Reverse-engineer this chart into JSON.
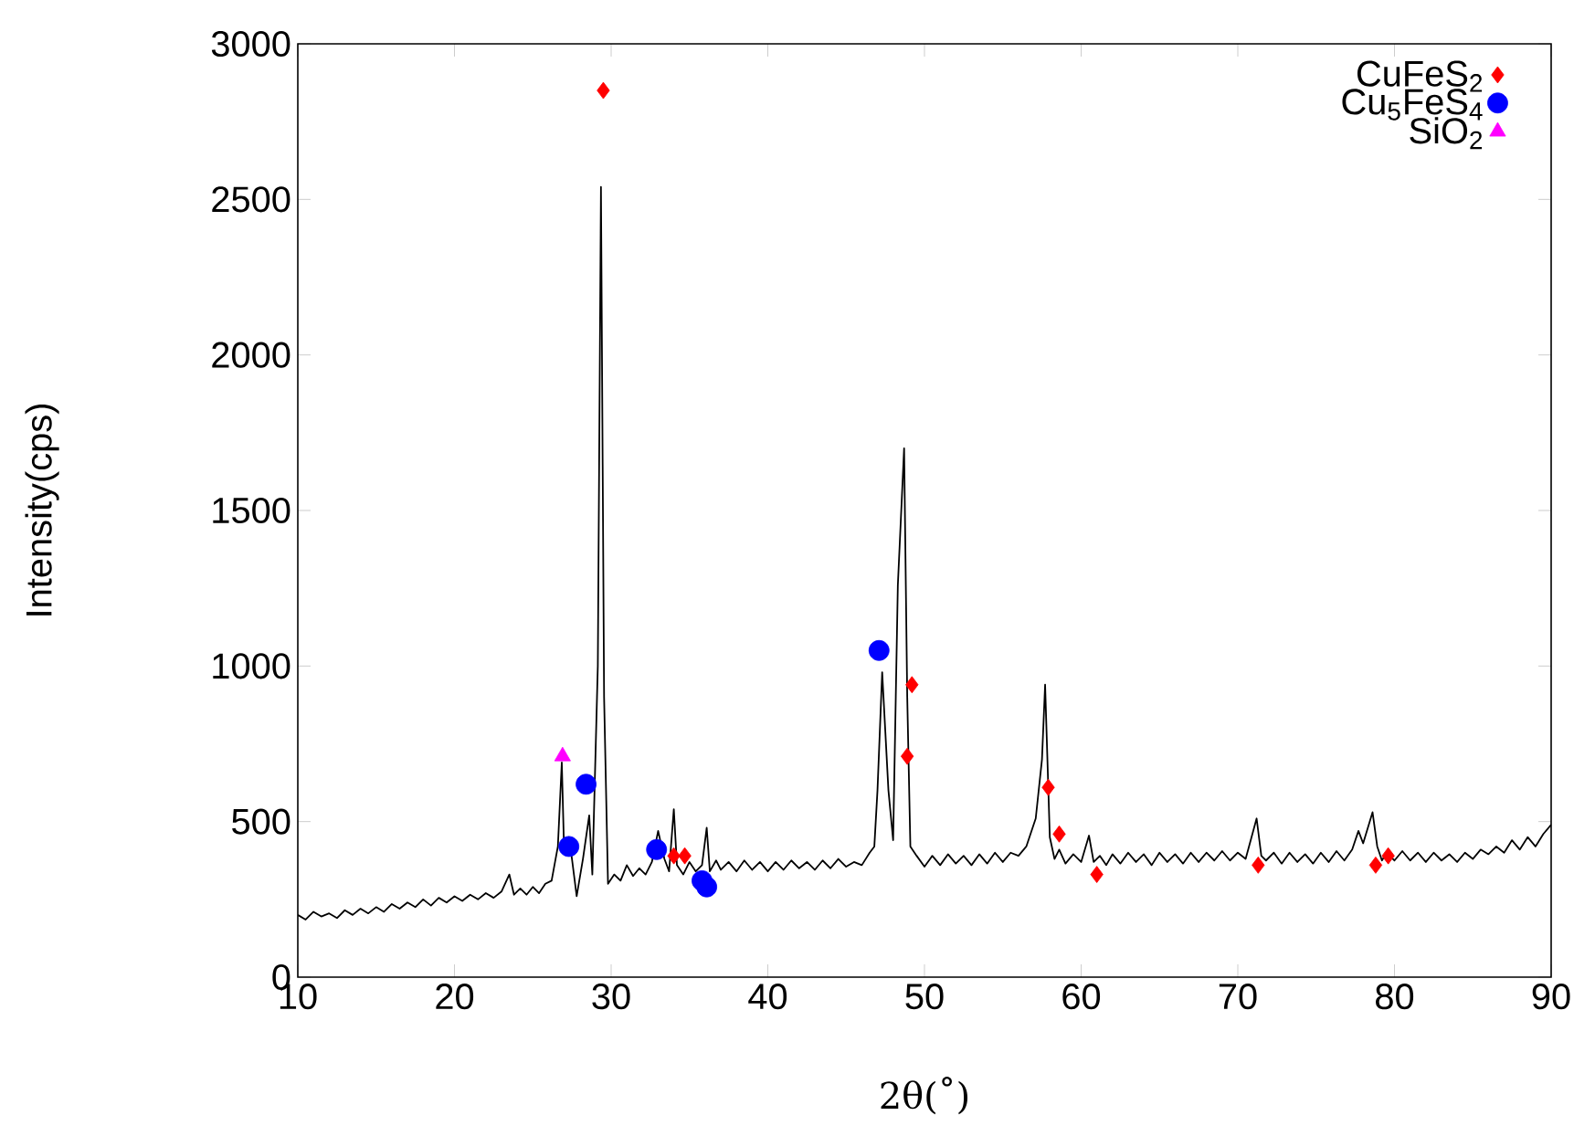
{
  "chart_data": {
    "type": "line",
    "xlabel": "2θ(˚)",
    "ylabel": "Intensity(cps)",
    "xlim": [
      10,
      90
    ],
    "xticks": [
      10,
      20,
      30,
      40,
      50,
      60,
      70,
      80,
      90
    ],
    "ylim": [
      0,
      3000
    ],
    "yticks": [
      0,
      500,
      1000,
      1500,
      2000,
      2500,
      3000
    ],
    "grid": false,
    "legend": "top right",
    "series": [
      {
        "color": "#000000",
        "marker": "none",
        "line_style": "solid",
        "x": [
          10.0,
          10.5,
          11.0,
          11.5,
          12.0,
          12.5,
          13.0,
          13.5,
          14.0,
          14.5,
          15.0,
          15.5,
          16.0,
          16.5,
          17.0,
          17.5,
          18.0,
          18.5,
          19.0,
          19.5,
          20.0,
          20.5,
          21.0,
          21.5,
          22.0,
          22.5,
          23.0,
          23.5,
          23.8,
          24.2,
          24.6,
          25.0,
          25.4,
          25.8,
          26.2,
          26.6,
          26.85,
          27.0,
          27.3,
          27.5,
          27.8,
          28.2,
          28.6,
          28.8,
          29.15,
          29.35,
          29.55,
          29.8,
          30.2,
          30.6,
          31.0,
          31.4,
          31.8,
          32.2,
          32.6,
          33.0,
          33.4,
          33.7,
          34.0,
          34.2,
          34.6,
          35.0,
          35.4,
          35.8,
          36.1,
          36.3,
          36.7,
          37.0,
          37.5,
          38.0,
          38.5,
          39.0,
          39.5,
          40.0,
          40.5,
          41.0,
          41.5,
          42.0,
          42.5,
          43.0,
          43.5,
          44.0,
          44.5,
          45.0,
          45.5,
          46.0,
          46.5,
          46.8,
          47.0,
          47.3,
          47.5,
          47.7,
          48.0,
          48.3,
          48.7,
          48.9,
          49.1,
          49.5,
          50.0,
          50.5,
          51.0,
          51.5,
          52.0,
          52.5,
          53.0,
          53.5,
          54.0,
          54.5,
          55.0,
          55.5,
          56.0,
          56.5,
          57.1,
          57.5,
          57.7,
          58.0,
          58.3,
          58.6,
          59.0,
          59.5,
          60.0,
          60.5,
          60.8,
          61.2,
          61.6,
          62.0,
          62.5,
          63.0,
          63.5,
          64.0,
          64.5,
          65.0,
          65.5,
          66.0,
          66.5,
          67.0,
          67.5,
          68.0,
          68.5,
          69.0,
          69.5,
          70.0,
          70.5,
          71.2,
          71.5,
          71.8,
          72.3,
          72.8,
          73.3,
          73.8,
          74.3,
          74.8,
          75.3,
          75.8,
          76.3,
          76.8,
          77.3,
          77.7,
          78.0,
          78.6,
          78.9,
          79.2,
          79.5,
          80.0,
          80.5,
          81.0,
          81.5,
          82.0,
          82.5,
          83.0,
          83.5,
          84.0,
          84.5,
          85.0,
          85.5,
          86.0,
          86.5,
          87.0,
          87.5,
          88.0,
          88.5,
          89.0,
          89.5,
          90.0
        ],
        "values": [
          200,
          185,
          210,
          195,
          205,
          190,
          215,
          200,
          220,
          205,
          225,
          210,
          235,
          220,
          240,
          225,
          250,
          230,
          255,
          240,
          260,
          245,
          265,
          250,
          270,
          255,
          275,
          330,
          265,
          285,
          265,
          290,
          270,
          300,
          310,
          420,
          690,
          400,
          450,
          380,
          260,
          380,
          520,
          330,
          1000,
          2540,
          900,
          300,
          330,
          310,
          360,
          325,
          350,
          330,
          370,
          470,
          380,
          340,
          540,
          360,
          330,
          370,
          340,
          360,
          480,
          340,
          375,
          345,
          370,
          340,
          375,
          345,
          370,
          340,
          370,
          345,
          375,
          350,
          370,
          345,
          375,
          350,
          380,
          355,
          370,
          360,
          400,
          420,
          600,
          980,
          790,
          600,
          440,
          1260,
          1700,
          900,
          420,
          390,
          355,
          390,
          360,
          395,
          365,
          390,
          360,
          395,
          365,
          400,
          370,
          400,
          390,
          420,
          510,
          700,
          940,
          450,
          380,
          410,
          365,
          395,
          370,
          455,
          370,
          390,
          360,
          395,
          365,
          400,
          370,
          395,
          360,
          400,
          370,
          395,
          365,
          400,
          370,
          400,
          375,
          405,
          375,
          400,
          380,
          510,
          390,
          375,
          400,
          365,
          400,
          370,
          395,
          365,
          400,
          370,
          405,
          375,
          410,
          470,
          430,
          530,
          420,
          375,
          400,
          375,
          405,
          375,
          400,
          370,
          400,
          375,
          395,
          370,
          400,
          380,
          410,
          395,
          420,
          400,
          440,
          410,
          450,
          420,
          460,
          490
        ]
      },
      {
        "type": "scatter",
        "name": "CuFeS$_{2}$",
        "color": "#ff0000",
        "marker": "diamond",
        "x": [
          29.5,
          34.0,
          34.7,
          48.9,
          49.2,
          57.9,
          58.6,
          61.0,
          71.3,
          78.8,
          79.6
        ],
        "values": [
          2850,
          390,
          390,
          710,
          940,
          610,
          460,
          330,
          360,
          360,
          390
        ]
      },
      {
        "type": "scatter",
        "name": "Cu$_{5}$FeS$_{4}$",
        "color": "#0000ff",
        "marker": "circle",
        "x": [
          27.3,
          28.4,
          32.9,
          35.8,
          36.1,
          47.1
        ],
        "values": [
          420,
          620,
          410,
          310,
          290,
          1050
        ]
      },
      {
        "type": "scatter",
        "name": "SiO$_{2}$",
        "color": "#ff00ff",
        "marker": "triangle",
        "x": [
          26.9
        ],
        "values": [
          710
        ]
      }
    ]
  }
}
